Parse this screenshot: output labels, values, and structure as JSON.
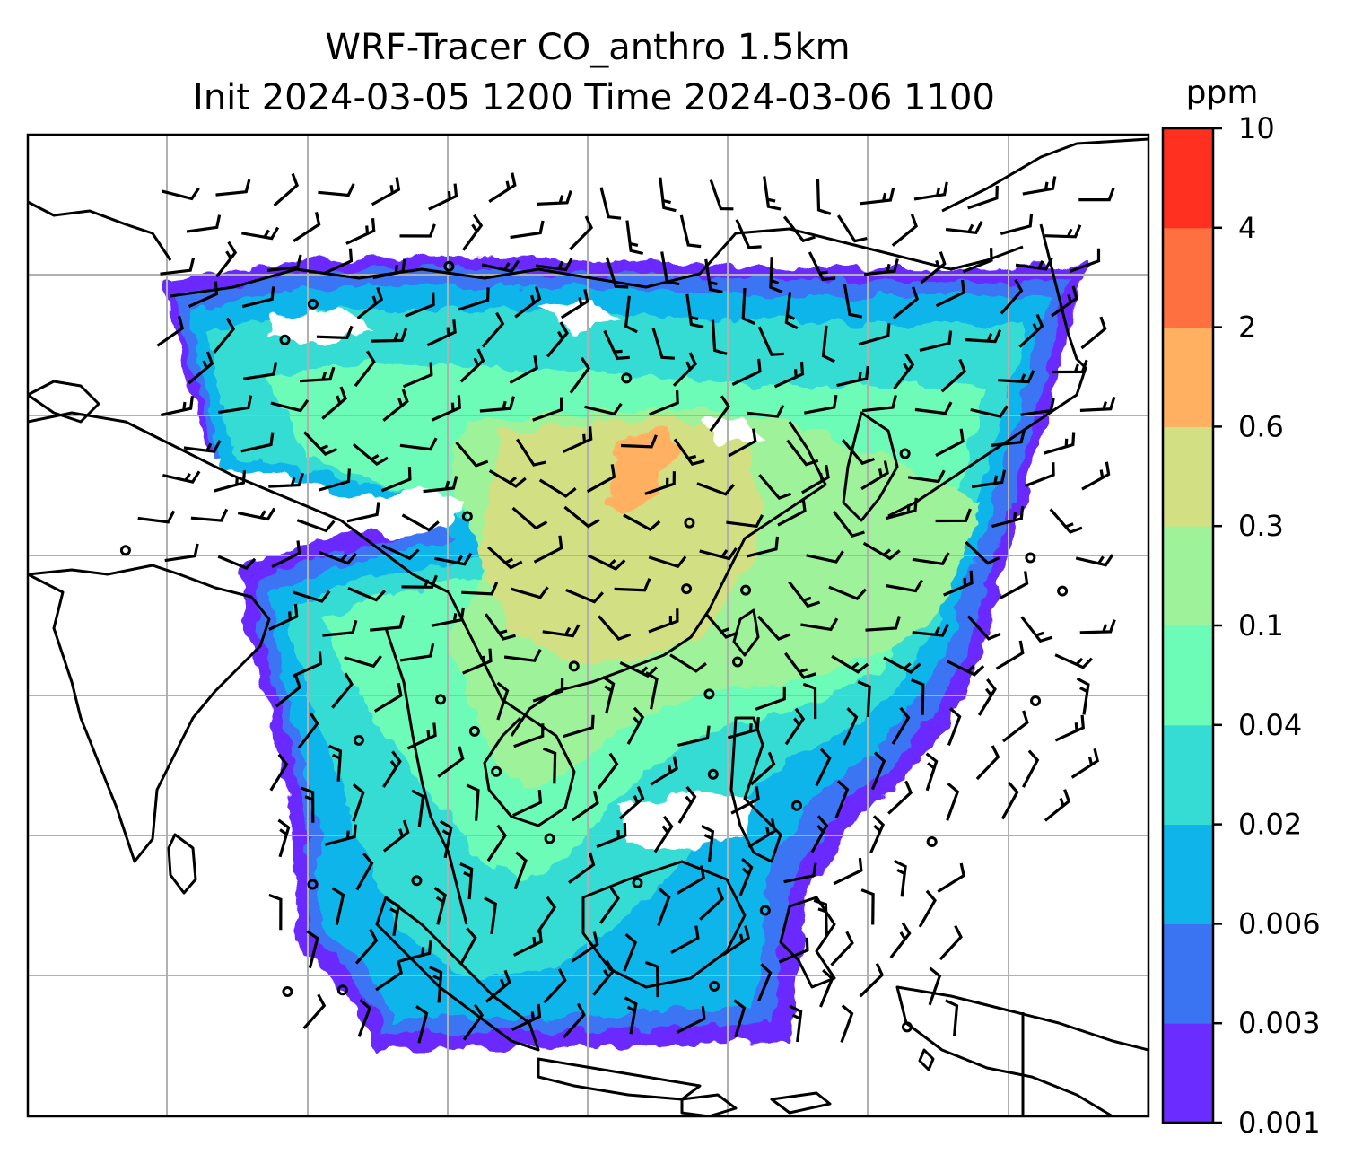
{
  "title": {
    "line1": "WRF-Tracer CO_anthro 1.5km",
    "line2": "Init 2024-03-05 1200 Time 2024-03-06 1100"
  },
  "colorbar": {
    "unit": "ppm",
    "levels": [
      "0.001",
      "0.003",
      "0.006",
      "0.02",
      "0.04",
      "0.1",
      "0.3",
      "0.6",
      "2",
      "4",
      "10"
    ],
    "colors": [
      "#6a2cff",
      "#3a74f3",
      "#0fb5ea",
      "#35dcd4",
      "#6dfbb8",
      "#9df29a",
      "#d2e083",
      "#ffb060",
      "#ff7040",
      "#ff3020"
    ]
  },
  "map": {
    "variable": "CO_anthro",
    "height": "1.5km",
    "gridlines": true,
    "coastline_color": "#000000",
    "wind_barb_color": "#000000"
  }
}
